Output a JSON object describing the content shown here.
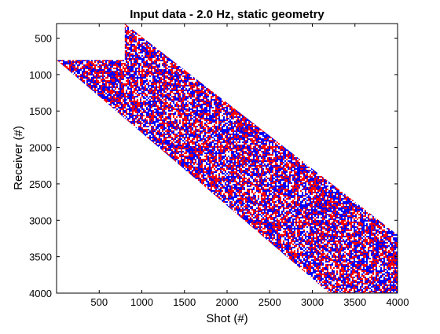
{
  "chart_data": {
    "type": "heatmap",
    "title": "Input data - 2.0 Hz, static geometry",
    "xlabel": "Shot (#)",
    "ylabel": "Receiver (#)",
    "xlim": [
      0,
      4000
    ],
    "ylim": [
      300,
      4000
    ],
    "y_reversed": true,
    "xticks": [
      500,
      1000,
      1500,
      2000,
      2500,
      3000,
      3500,
      4000
    ],
    "yticks": [
      500,
      1000,
      1500,
      2000,
      2500,
      3000,
      3500,
      4000
    ],
    "grid": false,
    "colors": {
      "positive": "#ff0000",
      "negative": "#0000ff",
      "zero": "#ffffff"
    },
    "data_region": {
      "description": "band of random-valued traces along a diagonal; narrow wedge near top-left",
      "polygon_shot_receiver": [
        [
          800,
          300
        ],
        [
          4000,
          3200
        ],
        [
          4000,
          4000
        ],
        [
          3200,
          4000
        ],
        [
          0,
          800
        ],
        [
          800,
          800
        ]
      ]
    }
  }
}
